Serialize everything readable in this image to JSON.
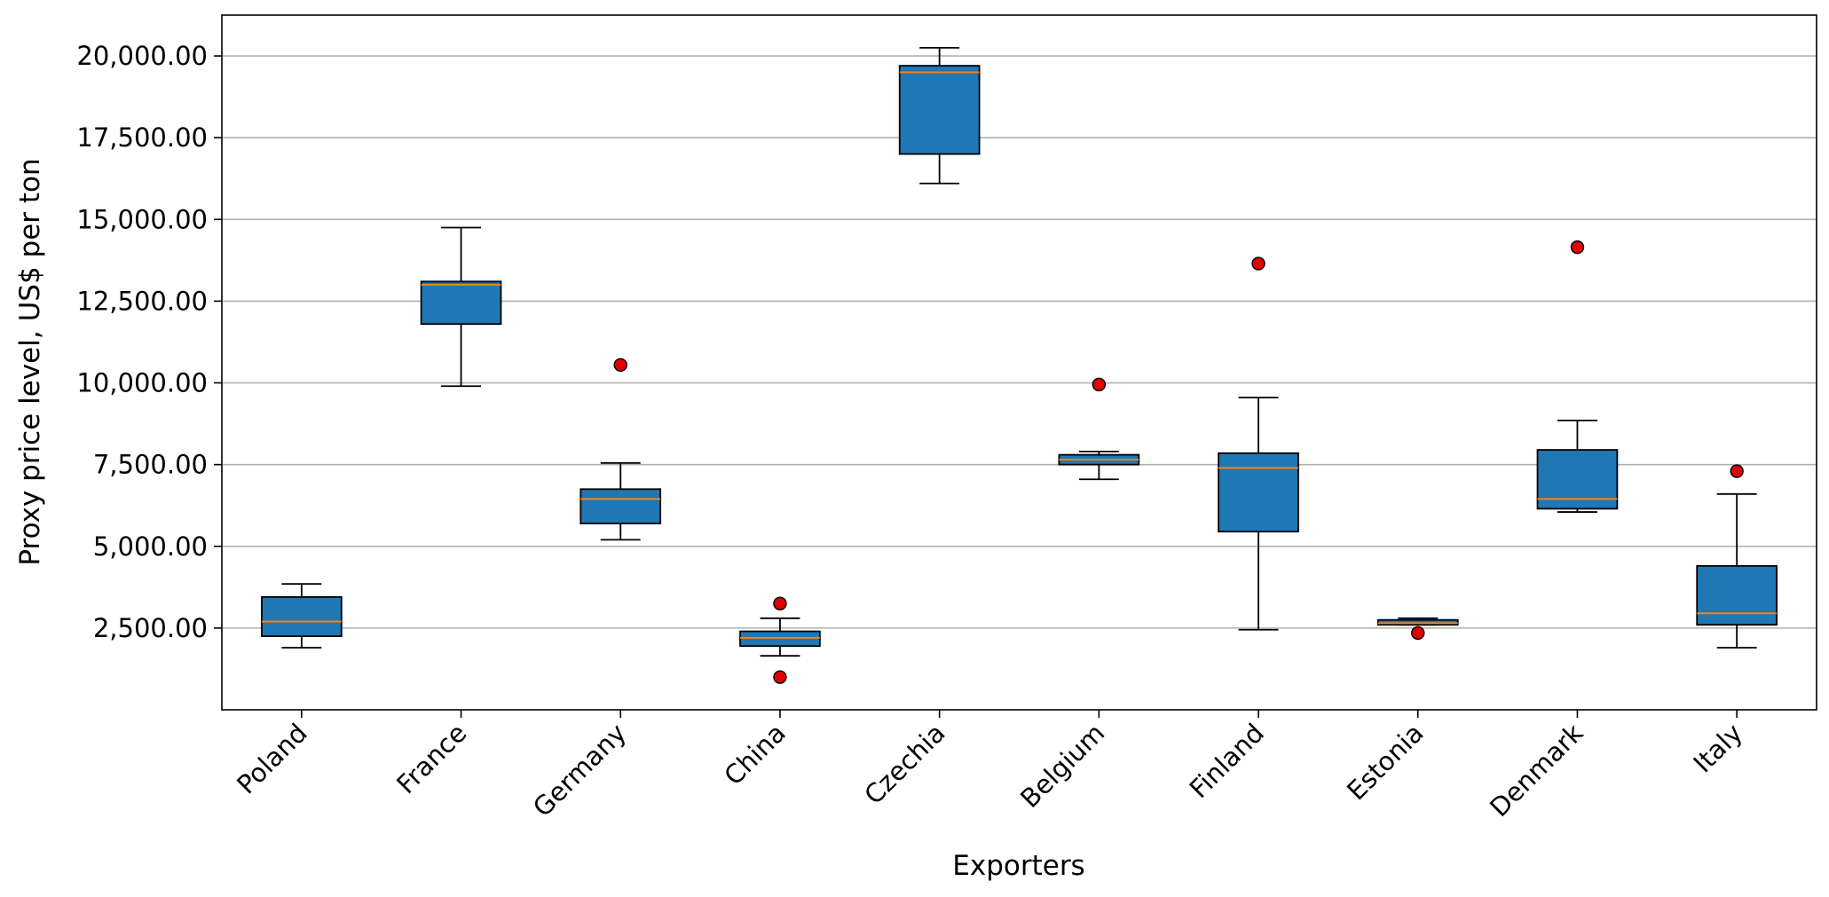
{
  "chart_data": {
    "type": "box",
    "title": "",
    "xlabel": "Exporters",
    "ylabel": "Proxy price level, US$ per ton",
    "ylim": [
      0,
      21250
    ],
    "grid": "horizontal",
    "yticks": [
      2500,
      5000,
      7500,
      10000,
      12500,
      15000,
      17500,
      20000
    ],
    "ytick_labels": [
      "2,500.00",
      "5,000.00",
      "7,500.00",
      "10,000.00",
      "12,500.00",
      "15,000.00",
      "17,500.00",
      "20,000.00"
    ],
    "categories": [
      "Poland",
      "France",
      "Germany",
      "China",
      "Czechia",
      "Belgium",
      "Finland",
      "Estonia",
      "Denmark",
      "Italy"
    ],
    "boxes": [
      {
        "whisker_low": 1900,
        "q1": 2250,
        "median": 2700,
        "q3": 3450,
        "whisker_high": 3850,
        "outliers": []
      },
      {
        "whisker_low": 9900,
        "q1": 11800,
        "median": 13000,
        "q3": 13100,
        "whisker_high": 14750,
        "outliers": []
      },
      {
        "whisker_low": 5200,
        "q1": 5700,
        "median": 6450,
        "q3": 6750,
        "whisker_high": 7550,
        "outliers": [
          10550
        ]
      },
      {
        "whisker_low": 1650,
        "q1": 1950,
        "median": 2200,
        "q3": 2400,
        "whisker_high": 2800,
        "outliers": [
          3250,
          1000
        ]
      },
      {
        "whisker_low": 16100,
        "q1": 17000,
        "median": 19500,
        "q3": 19700,
        "whisker_high": 20250,
        "outliers": []
      },
      {
        "whisker_low": 7050,
        "q1": 7500,
        "median": 7650,
        "q3": 7800,
        "whisker_high": 7900,
        "outliers": [
          9950
        ]
      },
      {
        "whisker_low": 2450,
        "q1": 5450,
        "median": 7400,
        "q3": 7850,
        "whisker_high": 9550,
        "outliers": [
          13650
        ]
      },
      {
        "whisker_low": 2600,
        "q1": 2600,
        "median": 2650,
        "q3": 2750,
        "whisker_high": 2800,
        "outliers": [
          2350
        ]
      },
      {
        "whisker_low": 6050,
        "q1": 6150,
        "median": 6450,
        "q3": 7950,
        "whisker_high": 8850,
        "outliers": [
          14150
        ]
      },
      {
        "whisker_low": 1900,
        "q1": 2600,
        "median": 2950,
        "q3": 4400,
        "whisker_high": 6600,
        "outliers": [
          7300
        ]
      }
    ],
    "colors": {
      "box_fill": "#1f77b4",
      "box_edge": "#000000",
      "median": "#ff7f0e",
      "outlier_fill": "#e00000",
      "grid": "#b0b0b0"
    }
  }
}
